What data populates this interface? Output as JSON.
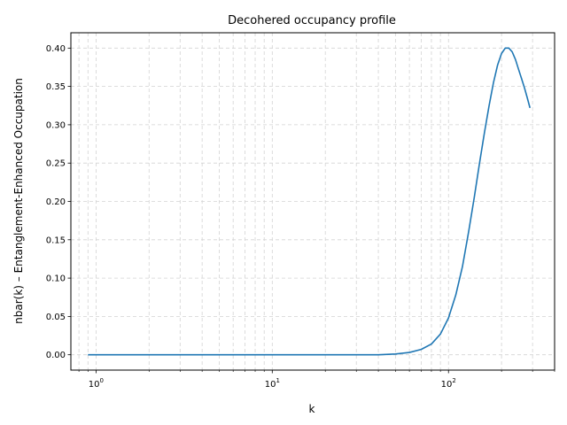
{
  "chart_data": {
    "type": "line",
    "title": "Decohered occupancy profile",
    "xlabel": "k",
    "ylabel": "nbar(k) – Entanglement-Enhanced Occupation",
    "xscale": "log",
    "xlim": [
      0.72,
      400
    ],
    "ylim": [
      -0.02,
      0.42
    ],
    "grid": true,
    "grid_style": "dashed",
    "line_color": "#1f77b4",
    "x_ticks": [
      {
        "value": 1,
        "base": "10",
        "exp": "0"
      },
      {
        "value": 10,
        "base": "10",
        "exp": "1"
      },
      {
        "value": 100,
        "base": "10",
        "exp": "2"
      }
    ],
    "y_ticks": [
      "0.00",
      "0.05",
      "0.10",
      "0.15",
      "0.20",
      "0.25",
      "0.30",
      "0.35",
      "0.40"
    ],
    "series": [
      {
        "x": [
          0.9,
          1,
          2,
          5,
          10,
          20,
          40,
          50,
          60,
          70,
          80,
          90,
          100,
          110,
          120,
          130,
          140,
          150,
          160,
          170,
          180,
          190,
          200,
          210,
          220,
          230,
          240,
          250,
          260,
          270,
          280,
          290
        ],
        "y": [
          0.0,
          0.0,
          0.0,
          0.0,
          0.0,
          0.0,
          0.0,
          0.001,
          0.003,
          0.007,
          0.014,
          0.027,
          0.048,
          0.078,
          0.115,
          0.16,
          0.205,
          0.25,
          0.29,
          0.325,
          0.355,
          0.378,
          0.393,
          0.4,
          0.4,
          0.395,
          0.385,
          0.372,
          0.36,
          0.348,
          0.335,
          0.322
        ]
      }
    ]
  }
}
